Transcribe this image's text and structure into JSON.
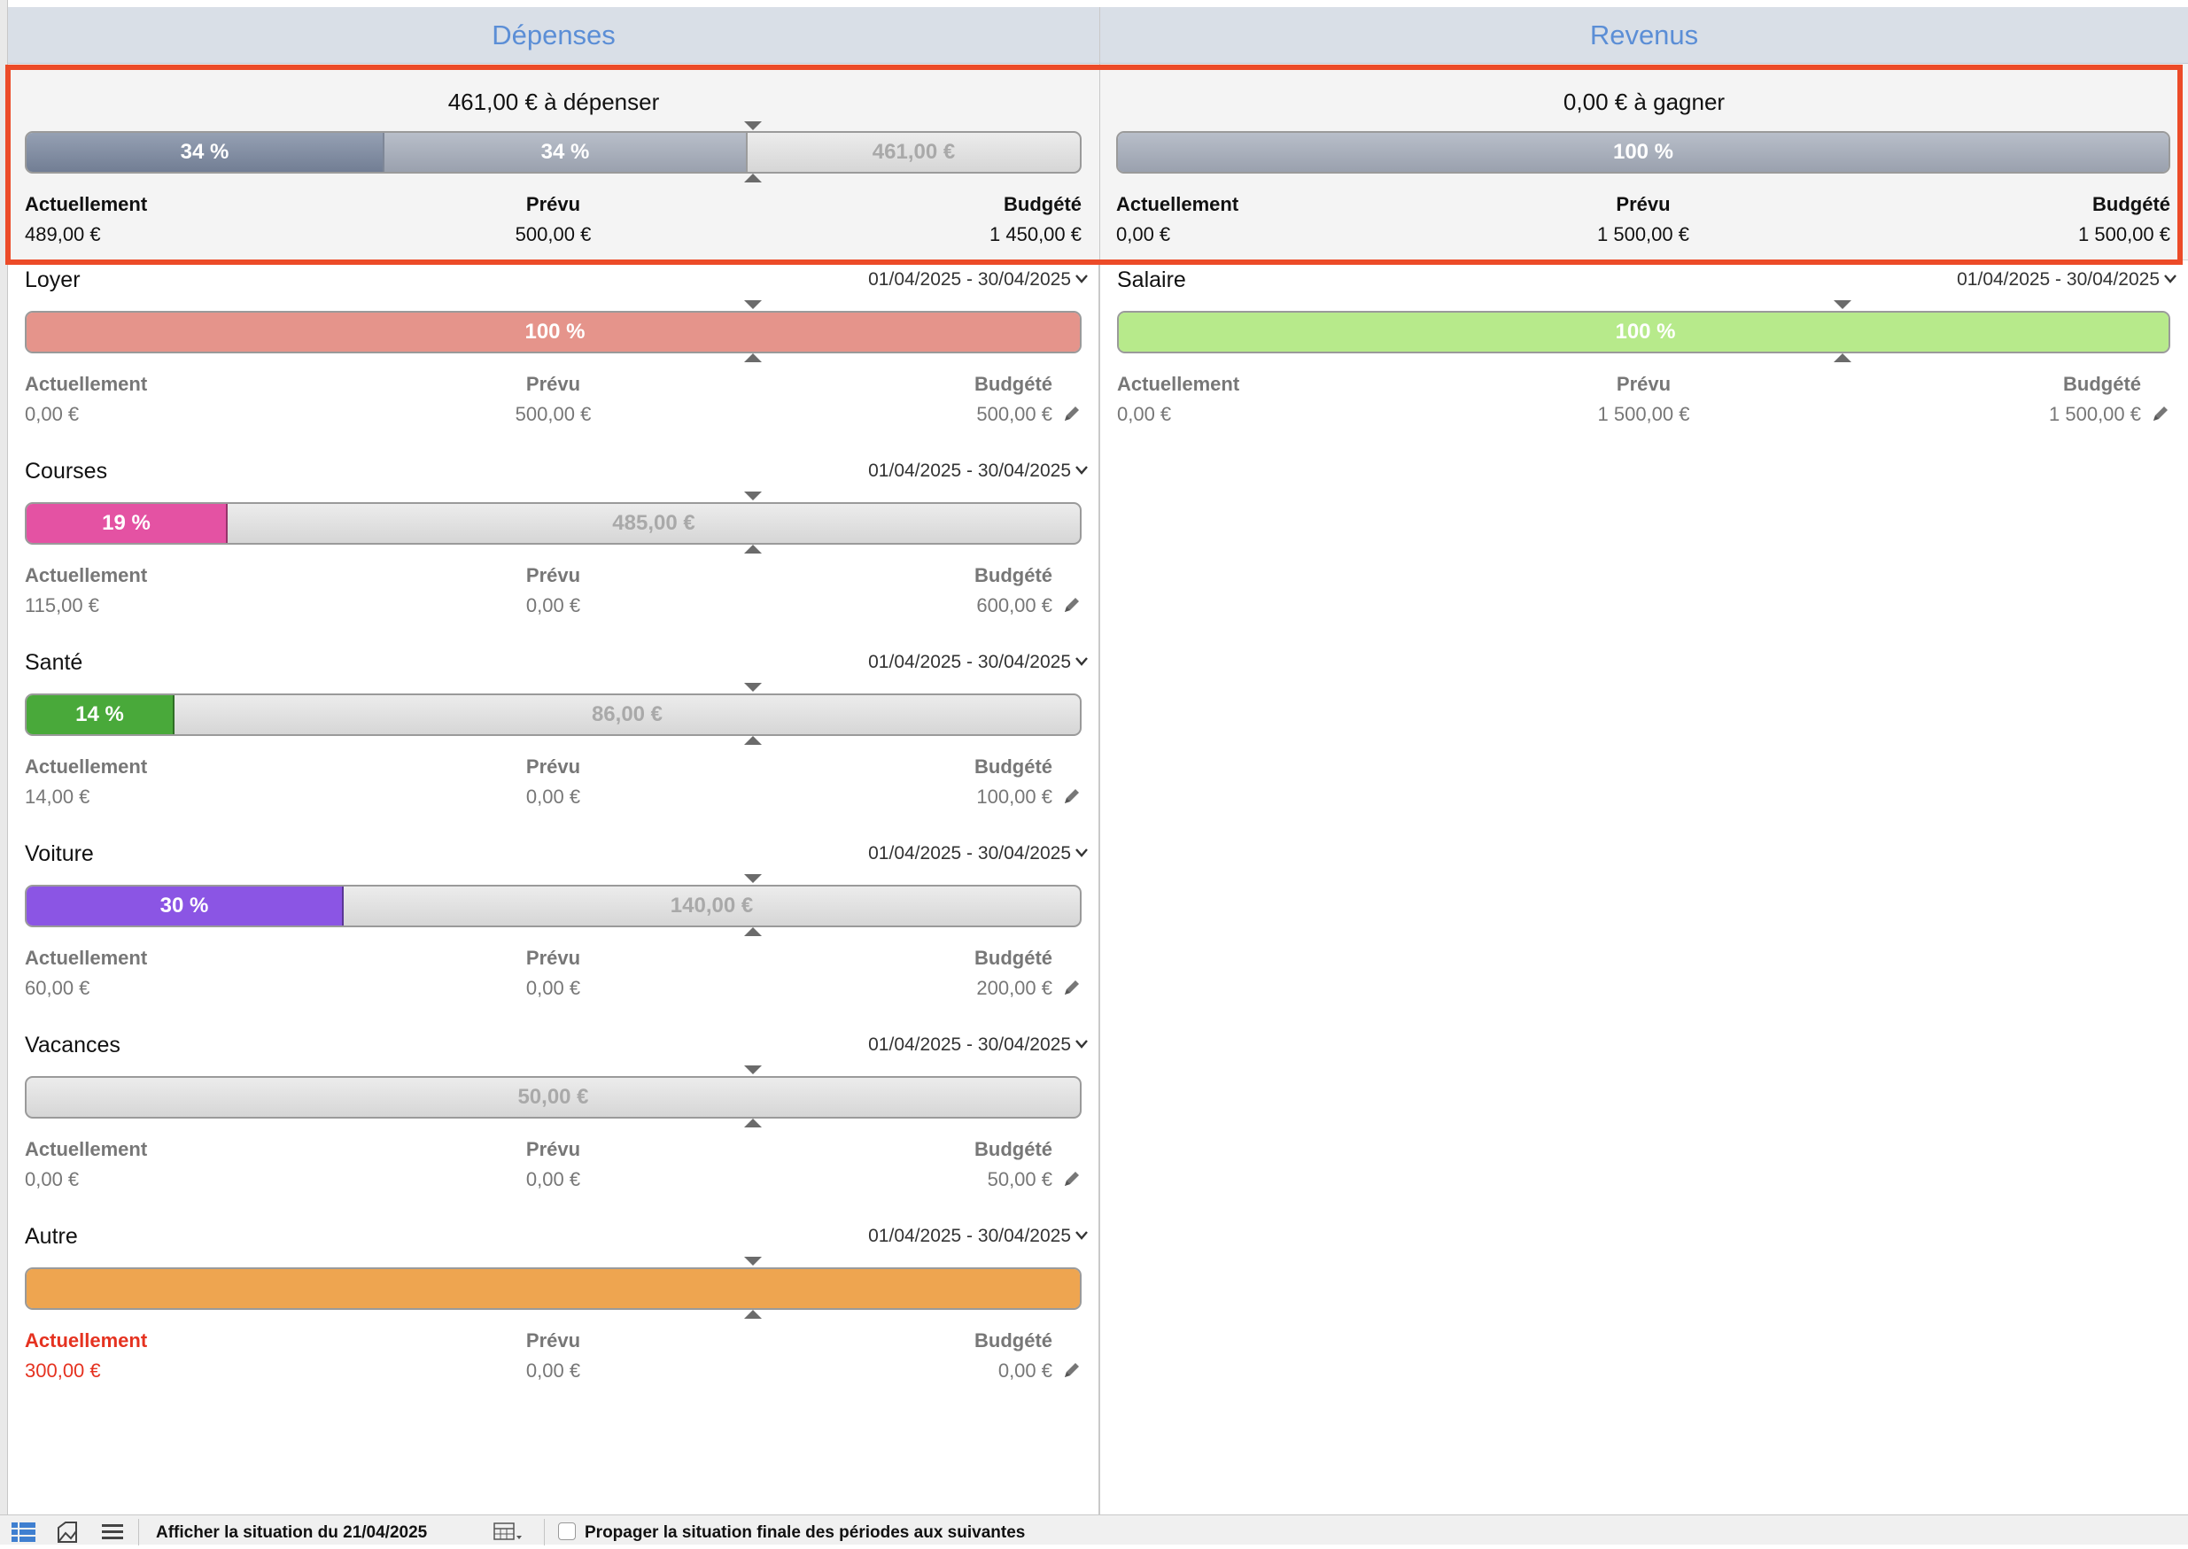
{
  "columns": {
    "expenses_title": "Dépenses",
    "income_title": "Revenus"
  },
  "expenses_summary": {
    "title": "461,00 € à dépenser",
    "seg_current": "34 %",
    "seg_planned": "34 %",
    "remaining": "461,00 €",
    "current_fraction": 0.337,
    "planned_fraction": 0.345,
    "labels": {
      "current": "Actuellement",
      "planned": "Prévu",
      "budgeted": "Budgété"
    },
    "current": "489,00 €",
    "planned": "500,00 €",
    "budgeted": "1 450,00 €"
  },
  "income_summary": {
    "title": "0,00 € à gagner",
    "seg_planned": "100 %",
    "planned_fraction": 1.0,
    "labels": {
      "current": "Actuellement",
      "planned": "Prévu",
      "budgeted": "Budgété"
    },
    "current": "0,00 €",
    "planned": "1 500,00 €",
    "budgeted": "1 500,00 €"
  },
  "expense_categories": [
    {
      "name": "Loyer",
      "period": "01/04/2025 - 30/04/2025",
      "bar_label": "100 %",
      "remaining": "",
      "fraction": 1.0,
      "color": "#e5948b",
      "current_label": "Actuellement",
      "current": "0,00 €",
      "planned_label": "Prévu",
      "planned": "500,00 €",
      "budgeted_label": "Budgété",
      "budgeted": "500,00 €"
    },
    {
      "name": "Courses",
      "period": "01/04/2025 - 30/04/2025",
      "bar_label": "19 %",
      "remaining": "485,00 €",
      "fraction": 0.19,
      "color": "#e452a3",
      "current_label": "Actuellement",
      "current": "115,00 €",
      "planned_label": "Prévu",
      "planned": "0,00 €",
      "budgeted_label": "Budgété",
      "budgeted": "600,00 €"
    },
    {
      "name": "Santé",
      "period": "01/04/2025 - 30/04/2025",
      "bar_label": "14 %",
      "remaining": "86,00 €",
      "fraction": 0.14,
      "color": "#49a93a",
      "current_label": "Actuellement",
      "current": "14,00 €",
      "planned_label": "Prévu",
      "planned": "0,00 €",
      "budgeted_label": "Budgété",
      "budgeted": "100,00 €"
    },
    {
      "name": "Voiture",
      "period": "01/04/2025 - 30/04/2025",
      "bar_label": "30 %",
      "remaining": "140,00 €",
      "fraction": 0.3,
      "color": "#8b55e4",
      "current_label": "Actuellement",
      "current": "60,00 €",
      "planned_label": "Prévu",
      "planned": "0,00 €",
      "budgeted_label": "Budgété",
      "budgeted": "200,00 €"
    },
    {
      "name": "Vacances",
      "period": "01/04/2025 - 30/04/2025",
      "bar_label": "",
      "remaining": "50,00 €",
      "fraction": 0.0,
      "color": "#d9d9d9",
      "current_label": "Actuellement",
      "current": "0,00 €",
      "planned_label": "Prévu",
      "planned": "0,00 €",
      "budgeted_label": "Budgété",
      "budgeted": "50,00 €"
    },
    {
      "name": "Autre",
      "period": "01/04/2025 - 30/04/2025",
      "bar_label": "",
      "remaining": "",
      "fraction": 1.0,
      "color": "#eea550",
      "over_budget": true,
      "current_label": "Actuellement",
      "current": "300,00 €",
      "planned_label": "Prévu",
      "planned": "0,00 €",
      "budgeted_label": "Budgété",
      "budgeted": "0,00 €"
    }
  ],
  "income_categories": [
    {
      "name": "Salaire",
      "period": "01/04/2025 - 30/04/2025",
      "bar_label": "100 %",
      "remaining": "",
      "fraction": 1.0,
      "color": "#b7ea8b",
      "current_label": "Actuellement",
      "current": "0,00 €",
      "planned_label": "Prévu",
      "planned": "1 500,00 €",
      "budgeted_label": "Budgété",
      "budgeted": "1 500,00 €"
    }
  ],
  "footer": {
    "situation_label": "Afficher la situation du 21/04/2025",
    "propagate_label": "Propager la situation finale des périodes aux suivantes",
    "propagate_checked": false
  },
  "colors": {
    "accent": "#5b8ed6",
    "highlight": "#ec4b28",
    "over_budget": "#e53220"
  }
}
